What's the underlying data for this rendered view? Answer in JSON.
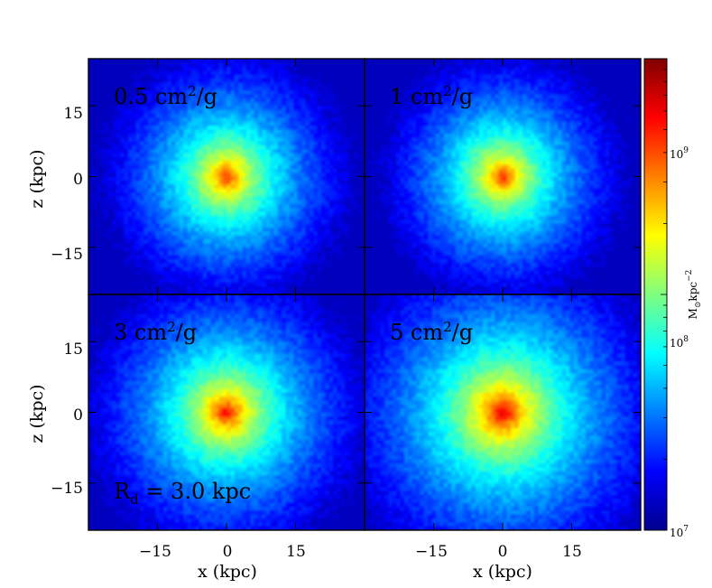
{
  "chart_data": {
    "type": "heatmap",
    "panels": [
      {
        "label_value": "0.5",
        "label_unit": "cm",
        "label_exp": "2",
        "label_tail": "/g",
        "peak_intensity": 0.86,
        "core_size_kpc": 3.6
      },
      {
        "label_value": "1",
        "label_unit": "cm",
        "label_exp": "2",
        "label_tail": "/g",
        "peak_intensity": 0.86,
        "core_size_kpc": 3.5
      },
      {
        "label_value": "3",
        "label_unit": "cm",
        "label_exp": "2",
        "label_tail": "/g",
        "peak_intensity": 0.9,
        "core_size_kpc": 3.6
      },
      {
        "label_value": "5",
        "label_unit": "cm",
        "label_exp": "2",
        "label_tail": "/g",
        "peak_intensity": 0.95,
        "core_size_kpc": 3.6
      }
    ],
    "annotation": {
      "main": "R",
      "sub": "d",
      "tail": " = 3.0 kpc"
    },
    "xlabel": "x (kpc)",
    "ylabel": "z (kpc)",
    "xlim": [
      -30,
      30
    ],
    "ylim": [
      -25,
      25
    ],
    "xticks": [
      -15,
      0,
      15
    ],
    "yticks": [
      -15,
      0,
      15
    ],
    "tick_label_minus": "−",
    "colorbar": {
      "scale": "log",
      "min": 10000000.0,
      "max": 1000000000.0,
      "ticks": [
        {
          "value": 10000000.0,
          "base": "10",
          "exp": "7"
        },
        {
          "value": 100000000.0,
          "base": "10",
          "exp": "8"
        },
        {
          "value": 1000000000.0,
          "base": "10",
          "exp": "9"
        }
      ],
      "label_main": "M",
      "label_sub": "⊙",
      "label_unit": "kpc",
      "label_exp": "−2",
      "colormap": "jet"
    }
  }
}
